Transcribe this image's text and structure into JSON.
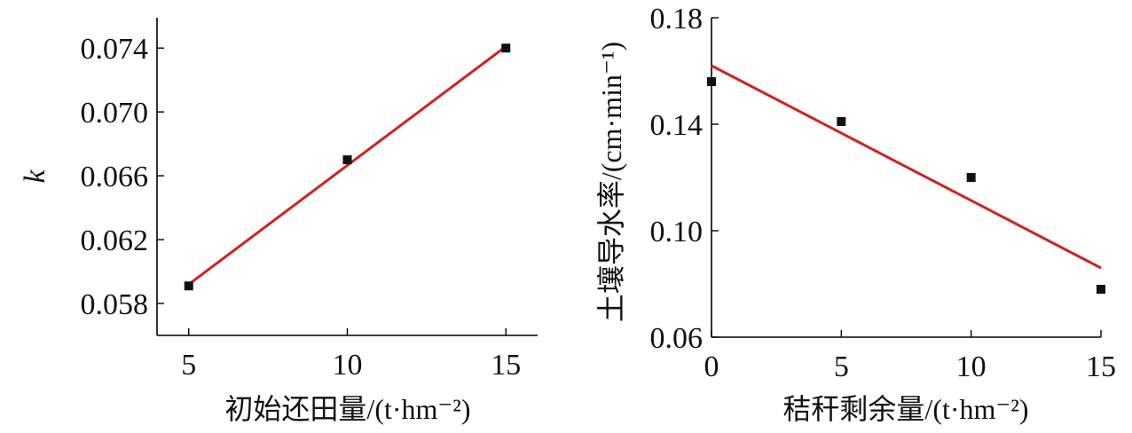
{
  "chart_data": [
    {
      "type": "scatter",
      "fit": "linear",
      "xlabel": "初始还田量/(t·hm⁻²)",
      "ylabel": "k",
      "xlim": [
        4,
        16
      ],
      "ylim": [
        0.056,
        0.0759
      ],
      "x_ticks": [
        5,
        10,
        15
      ],
      "y_ticks": [
        0.058,
        0.062,
        0.066,
        0.07,
        0.074
      ],
      "x_tick_labels": [
        "5",
        "10",
        "15"
      ],
      "y_tick_labels": [
        "0.058",
        "0.062",
        "0.066",
        "0.070",
        "0.074"
      ],
      "points": [
        {
          "x": 5,
          "y": 0.0591
        },
        {
          "x": 10,
          "y": 0.067
        },
        {
          "x": 15,
          "y": 0.074
        }
      ],
      "fit_line": {
        "x": [
          5,
          15
        ],
        "y": [
          0.0592,
          0.0741
        ],
        "color": "#d42020"
      },
      "marker_color": "#111111",
      "grid": false,
      "legend": "none"
    },
    {
      "type": "scatter",
      "fit": "linear",
      "xlabel": "秸秆剩余量/(t·hm⁻²)",
      "ylabel": "土壤导水率/(cm·min⁻¹)",
      "xlim": [
        0,
        15
      ],
      "ylim": [
        0.06,
        0.18
      ],
      "x_ticks": [
        0,
        5,
        10,
        15
      ],
      "y_ticks": [
        0.06,
        0.1,
        0.14,
        0.18
      ],
      "x_tick_labels": [
        "0",
        "5",
        "10",
        "15"
      ],
      "y_tick_labels": [
        "0.06",
        "0.10",
        "0.14",
        "0.18"
      ],
      "points": [
        {
          "x": 0,
          "y": 0.156
        },
        {
          "x": 5,
          "y": 0.141
        },
        {
          "x": 10,
          "y": 0.12
        },
        {
          "x": 15,
          "y": 0.078
        }
      ],
      "fit_line": {
        "x": [
          0,
          15
        ],
        "y": [
          0.162,
          0.086
        ],
        "color": "#d42020"
      },
      "marker_color": "#111111",
      "grid": false,
      "legend": "none"
    }
  ]
}
